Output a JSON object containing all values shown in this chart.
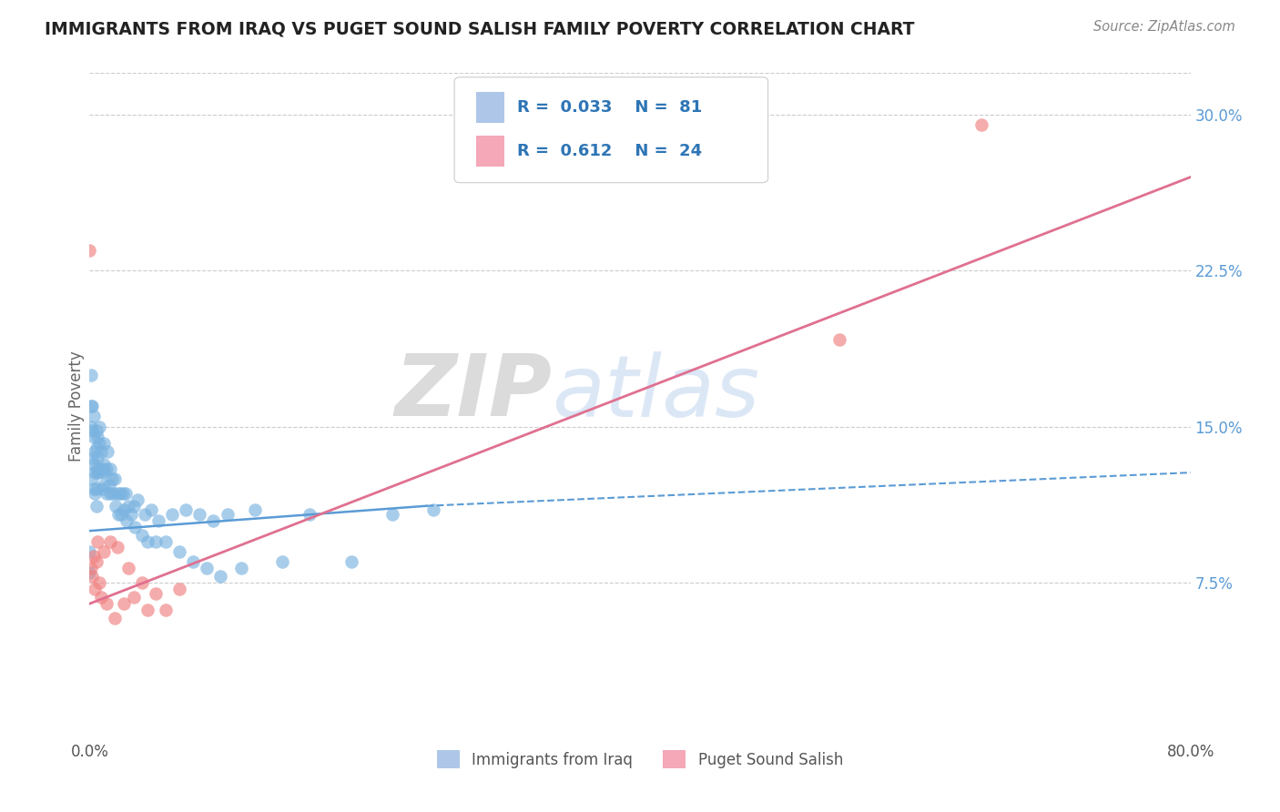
{
  "title": "IMMIGRANTS FROM IRAQ VS PUGET SOUND SALISH FAMILY POVERTY CORRELATION CHART",
  "source_text": "Source: ZipAtlas.com",
  "ylabel": "Family Poverty",
  "xlim": [
    0.0,
    0.8
  ],
  "ylim": [
    0.0,
    0.32
  ],
  "blue_scatter": {
    "x": [
      0.0,
      0.0,
      0.001,
      0.001,
      0.001,
      0.002,
      0.002,
      0.002,
      0.002,
      0.003,
      0.003,
      0.003,
      0.003,
      0.004,
      0.004,
      0.004,
      0.005,
      0.005,
      0.005,
      0.005,
      0.005,
      0.006,
      0.006,
      0.006,
      0.007,
      0.007,
      0.007,
      0.008,
      0.008,
      0.009,
      0.009,
      0.01,
      0.01,
      0.01,
      0.011,
      0.012,
      0.012,
      0.013,
      0.014,
      0.015,
      0.015,
      0.016,
      0.017,
      0.018,
      0.019,
      0.02,
      0.021,
      0.022,
      0.023,
      0.024,
      0.025,
      0.026,
      0.027,
      0.028,
      0.03,
      0.032,
      0.033,
      0.035,
      0.038,
      0.04,
      0.042,
      0.045,
      0.048,
      0.05,
      0.055,
      0.06,
      0.065,
      0.07,
      0.075,
      0.08,
      0.085,
      0.09,
      0.095,
      0.1,
      0.11,
      0.12,
      0.14,
      0.16,
      0.19,
      0.22,
      0.25
    ],
    "y": [
      0.09,
      0.08,
      0.175,
      0.16,
      0.15,
      0.16,
      0.148,
      0.135,
      0.125,
      0.155,
      0.145,
      0.132,
      0.12,
      0.138,
      0.128,
      0.118,
      0.148,
      0.14,
      0.13,
      0.12,
      0.112,
      0.145,
      0.135,
      0.128,
      0.15,
      0.142,
      0.13,
      0.138,
      0.128,
      0.13,
      0.12,
      0.142,
      0.132,
      0.122,
      0.128,
      0.13,
      0.118,
      0.138,
      0.122,
      0.13,
      0.118,
      0.125,
      0.118,
      0.125,
      0.112,
      0.118,
      0.108,
      0.118,
      0.108,
      0.118,
      0.11,
      0.118,
      0.105,
      0.112,
      0.108,
      0.112,
      0.102,
      0.115,
      0.098,
      0.108,
      0.095,
      0.11,
      0.095,
      0.105,
      0.095,
      0.108,
      0.09,
      0.11,
      0.085,
      0.108,
      0.082,
      0.105,
      0.078,
      0.108,
      0.082,
      0.11,
      0.085,
      0.108,
      0.085,
      0.108,
      0.11
    ]
  },
  "pink_scatter": {
    "x": [
      0.0,
      0.001,
      0.002,
      0.003,
      0.004,
      0.005,
      0.006,
      0.007,
      0.008,
      0.01,
      0.012,
      0.015,
      0.018,
      0.02,
      0.025,
      0.028,
      0.032,
      0.038,
      0.042,
      0.048,
      0.055,
      0.065,
      0.545,
      0.648
    ],
    "y": [
      0.235,
      0.082,
      0.078,
      0.088,
      0.072,
      0.085,
      0.095,
      0.075,
      0.068,
      0.09,
      0.065,
      0.095,
      0.058,
      0.092,
      0.065,
      0.082,
      0.068,
      0.075,
      0.062,
      0.07,
      0.062,
      0.072,
      0.192,
      0.295
    ]
  },
  "blue_solid_line": {
    "x0": 0.0,
    "x1": 0.245,
    "y0": 0.1,
    "y1": 0.112
  },
  "blue_dashed_line": {
    "x0": 0.245,
    "x1": 0.8,
    "y0": 0.112,
    "y1": 0.128
  },
  "pink_line": {
    "x0": 0.0,
    "x1": 0.8,
    "y0": 0.065,
    "y1": 0.27
  },
  "scatter_color_blue": "#7ab3e0",
  "scatter_color_pink": "#f08080",
  "line_color_blue": "#5b9bd5",
  "line_color_pink": "#e07090",
  "watermark_zip": "ZIP",
  "watermark_atlas": "atlas",
  "background_color": "#ffffff",
  "grid_color": "#cccccc",
  "legend_R1": "R =  0.033",
  "legend_N1": "N =  81",
  "legend_R2": "R =  0.612",
  "legend_N2": "N =  24",
  "legend_color_blue": "#aec6e8",
  "legend_color_pink": "#f4a8b8",
  "legend_text_color": "#2e75b6",
  "label1": "Immigrants from Iraq",
  "label2": "Puget Sound Salish",
  "yticks": [
    0.075,
    0.15,
    0.225,
    0.3
  ],
  "ytick_labels": [
    "7.5%",
    "15.0%",
    "22.5%",
    "30.0%"
  ],
  "ytick_color": "#5b9bd5"
}
